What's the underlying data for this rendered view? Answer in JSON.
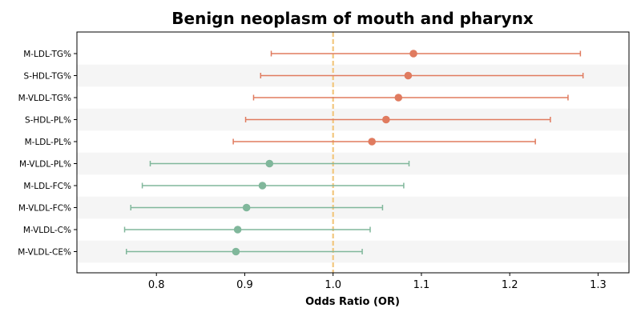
{
  "chart_data": {
    "type": "forest",
    "title": "Benign neoplasm of mouth and pharynx",
    "xlabel": "Odds Ratio (OR)",
    "ylabel": "",
    "xlim": [
      0.71,
      1.335
    ],
    "xticks": [
      0.8,
      0.9,
      1.0,
      1.1,
      1.2,
      1.3
    ],
    "xtick_labels": [
      "0.8",
      "0.9",
      "1.0",
      "1.1",
      "1.2",
      "1.3"
    ],
    "reference_line": 1.0,
    "reference_color": "#f2c77e",
    "risk_color": "#e07b5f",
    "protective_color": "#80b79b",
    "band_color": "#f5f5f5",
    "grid": false,
    "legend": "none",
    "rows": [
      {
        "label": "M-LDL-TG%",
        "or": 1.091,
        "lower": 0.93,
        "upper": 1.28
      },
      {
        "label": "S-HDL-TG%",
        "or": 1.085,
        "lower": 0.918,
        "upper": 1.283
      },
      {
        "label": "M-VLDL-TG%",
        "or": 1.074,
        "lower": 0.91,
        "upper": 1.266
      },
      {
        "label": "S-HDL-PL%",
        "or": 1.06,
        "lower": 0.901,
        "upper": 1.246
      },
      {
        "label": "M-LDL-PL%",
        "or": 1.044,
        "lower": 0.887,
        "upper": 1.229
      },
      {
        "label": "M-VLDL-PL%",
        "or": 0.928,
        "lower": 0.793,
        "upper": 1.086
      },
      {
        "label": "M-LDL-FC%",
        "or": 0.92,
        "lower": 0.784,
        "upper": 1.08
      },
      {
        "label": "M-VLDL-FC%",
        "or": 0.902,
        "lower": 0.771,
        "upper": 1.056
      },
      {
        "label": "M-VLDL-C%",
        "or": 0.892,
        "lower": 0.764,
        "upper": 1.042
      },
      {
        "label": "M-VLDL-CE%",
        "or": 0.89,
        "lower": 0.766,
        "upper": 1.033
      }
    ]
  }
}
